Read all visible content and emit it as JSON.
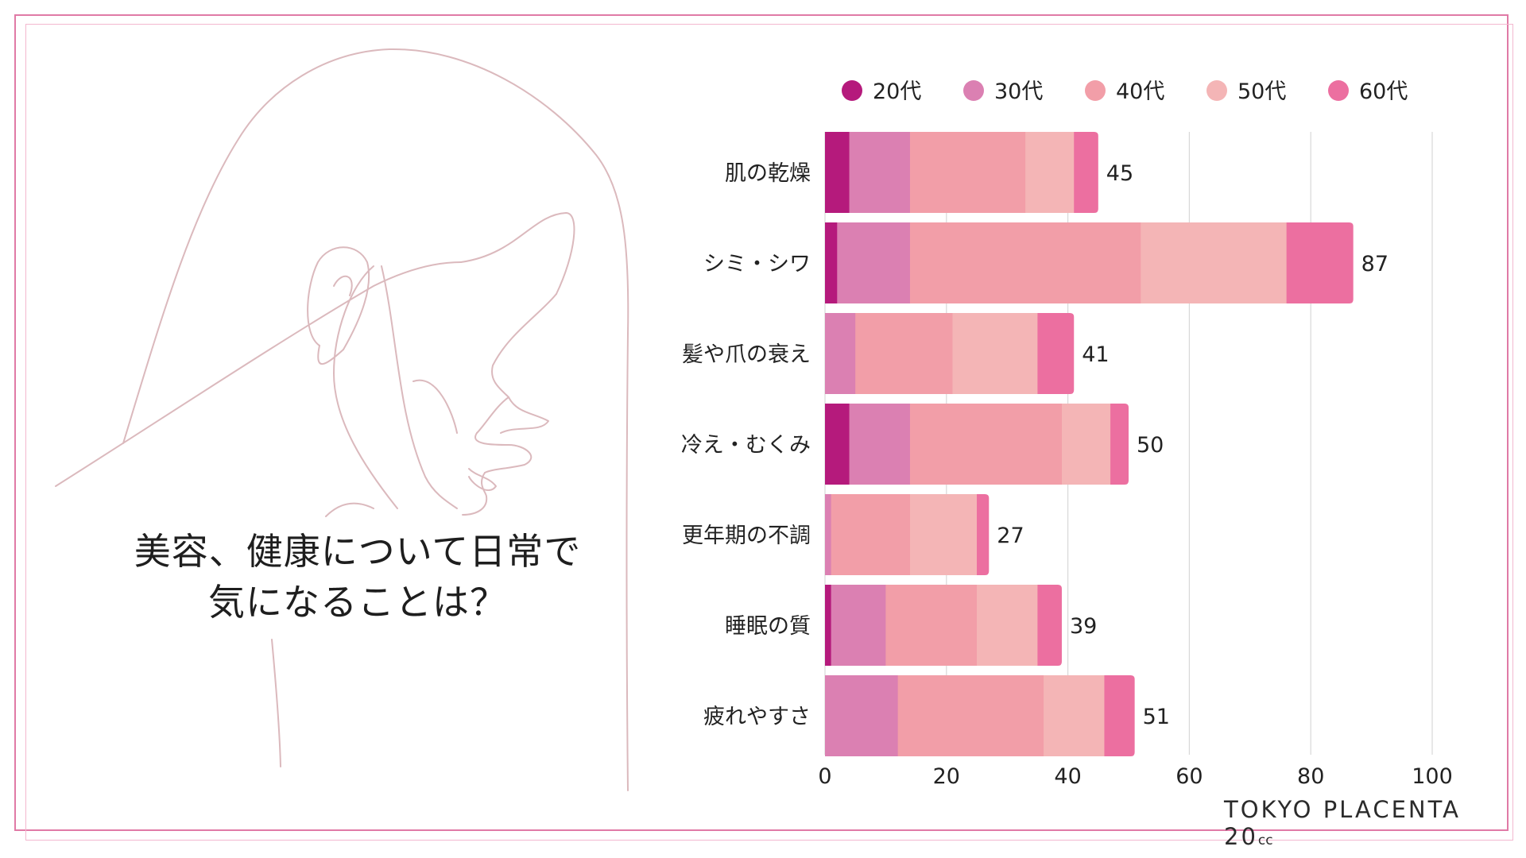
{
  "question": {
    "line1": "美容、健康について日常で",
    "line2": "気になることは？"
  },
  "logo": {
    "main": "TOKYO PLACENTA 20",
    "suffix": "cc"
  },
  "colors": {
    "series": [
      "#b51a7c",
      "#db80b2",
      "#f29ea8",
      "#f4b5b6",
      "#ec6fa0"
    ],
    "grid": "#d8d8d8",
    "line_art": "#dbb9bd",
    "frame": "#e07aa6"
  },
  "chart_data": {
    "type": "bar",
    "orientation": "horizontal",
    "stacked": true,
    "categories": [
      "肌の乾燥",
      "シミ・シワ",
      "髪や爪の衰え",
      "冷え・むくみ",
      "更年期の不調",
      "睡眠の質",
      "疲れやすさ"
    ],
    "series": [
      {
        "name": "20代",
        "values": [
          4,
          2,
          0,
          4,
          0,
          1,
          0
        ]
      },
      {
        "name": "30代",
        "values": [
          10,
          12,
          5,
          10,
          1,
          9,
          12
        ]
      },
      {
        "name": "40代",
        "values": [
          19,
          38,
          16,
          25,
          13,
          15,
          24
        ]
      },
      {
        "name": "50代",
        "values": [
          8,
          24,
          14,
          8,
          11,
          10,
          10
        ]
      },
      {
        "name": "60代",
        "values": [
          4,
          11,
          6,
          3,
          2,
          4,
          5
        ]
      }
    ],
    "totals": [
      "45",
      "87",
      "41",
      "50",
      "27",
      "39",
      "51"
    ],
    "xlim": [
      0,
      100
    ],
    "xticks": [
      "0",
      "20",
      "40",
      "60",
      "80",
      "100"
    ],
    "grid": true,
    "legend_position": "top"
  }
}
